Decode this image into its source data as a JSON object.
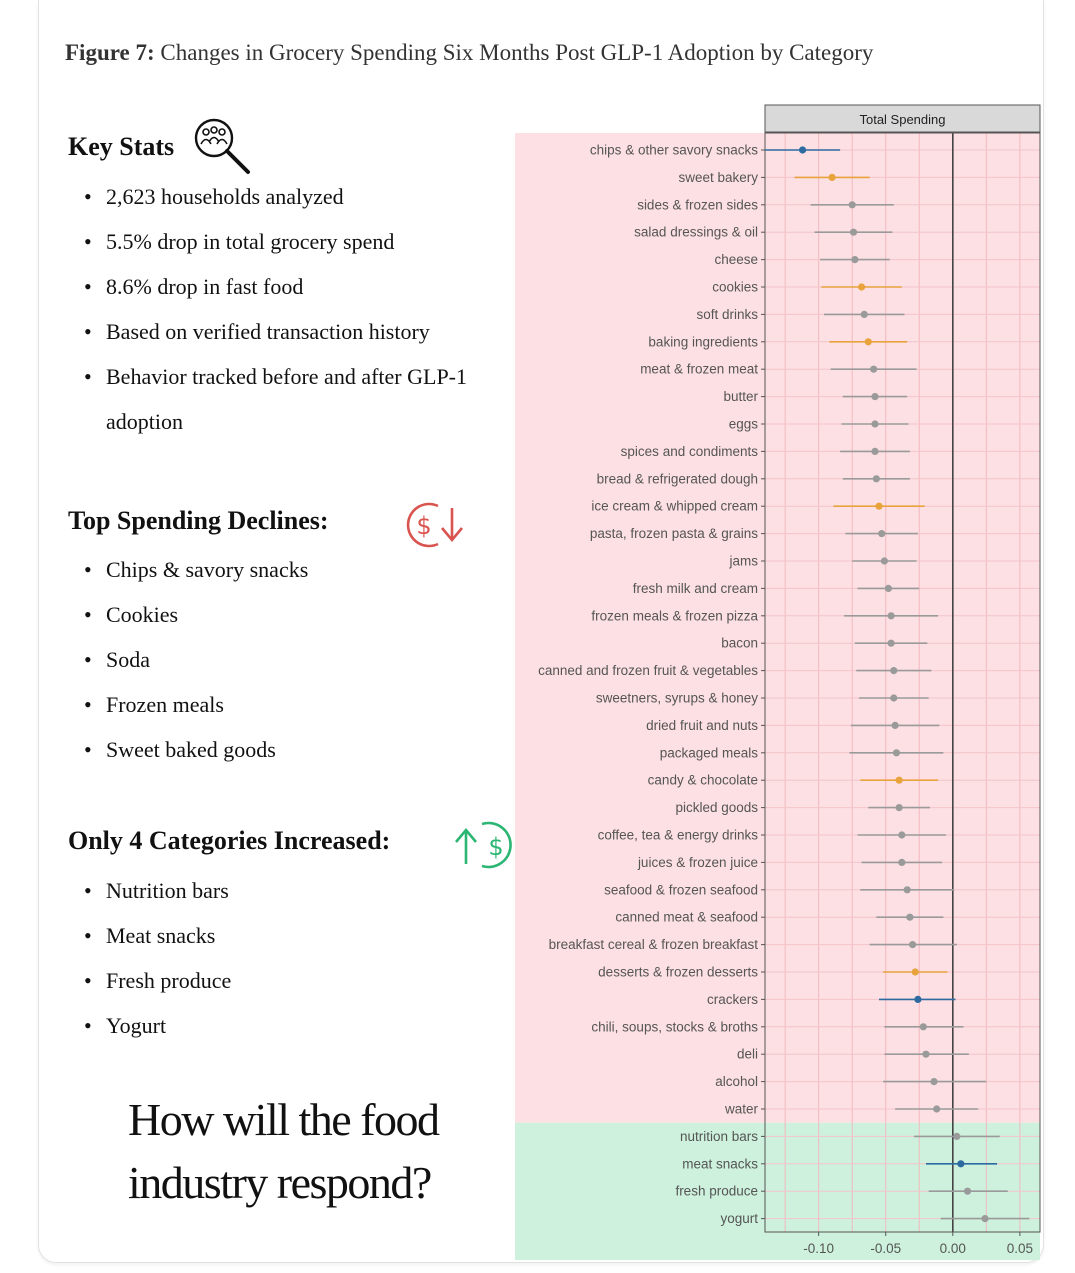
{
  "figure": {
    "label": "Figure 7:",
    "title": "Changes in Grocery Spending Six Months Post GLP-1 Adoption by Category"
  },
  "key_stats": {
    "heading": "Key Stats",
    "icon": "search-people-icon",
    "items": [
      "2,623 households analyzed",
      "5.5% drop in total grocery spend",
      "8.6% drop in fast food",
      "Based on verified transaction history",
      "Behavior tracked before and after GLP-1 adoption"
    ]
  },
  "declines": {
    "heading": "Top Spending Declines:",
    "icon": "dollar-down-icon",
    "items": [
      "Chips & savory snacks",
      "Cookies",
      "Soda",
      "Frozen meals",
      "Sweet baked goods"
    ]
  },
  "increases": {
    "heading": "Only 4 Categories Increased:",
    "icon": "dollar-up-icon",
    "items": [
      "Nutrition bars",
      "Meat snacks",
      "Fresh produce",
      "Yogurt"
    ]
  },
  "question": "How will the food industry respond?",
  "colors": {
    "decline_bg": "#fde0e3",
    "increase_bg": "#cdf1dc",
    "gray": "#9a9a9a",
    "orange": "#e8a33d",
    "blue": "#2d6aa0",
    "red_icon": "#d9534f",
    "green_icon": "#2bb673"
  },
  "chart_data": {
    "type": "scatter",
    "panel_title": "Total Spending",
    "xlim": [
      -0.14,
      0.065
    ],
    "xticks": [
      -0.1,
      -0.05,
      0.0,
      0.05
    ],
    "xtick_labels": [
      "-0.10",
      "-0.05",
      "0.00",
      "0.05"
    ],
    "zero_line": 0,
    "grid": true,
    "points": [
      {
        "category": "chips & other savory snacks",
        "estimate": -0.112,
        "ci": [
          -0.14,
          -0.084
        ],
        "color": "blue",
        "group": "decline"
      },
      {
        "category": "sweet bakery",
        "estimate": -0.09,
        "ci": [
          -0.118,
          -0.062
        ],
        "color": "orange",
        "group": "decline"
      },
      {
        "category": "sides & frozen sides",
        "estimate": -0.075,
        "ci": [
          -0.106,
          -0.044
        ],
        "color": "gray",
        "group": "decline"
      },
      {
        "category": "salad dressings & oil",
        "estimate": -0.074,
        "ci": [
          -0.103,
          -0.045
        ],
        "color": "gray",
        "group": "decline"
      },
      {
        "category": "cheese",
        "estimate": -0.073,
        "ci": [
          -0.099,
          -0.047
        ],
        "color": "gray",
        "group": "decline"
      },
      {
        "category": "cookies",
        "estimate": -0.068,
        "ci": [
          -0.098,
          -0.038
        ],
        "color": "orange",
        "group": "decline"
      },
      {
        "category": "soft drinks",
        "estimate": -0.066,
        "ci": [
          -0.096,
          -0.036
        ],
        "color": "gray",
        "group": "decline"
      },
      {
        "category": "baking ingredients",
        "estimate": -0.063,
        "ci": [
          -0.092,
          -0.034
        ],
        "color": "orange",
        "group": "decline"
      },
      {
        "category": "meat & frozen meat",
        "estimate": -0.059,
        "ci": [
          -0.091,
          -0.027
        ],
        "color": "gray",
        "group": "decline"
      },
      {
        "category": "butter",
        "estimate": -0.058,
        "ci": [
          -0.082,
          -0.034
        ],
        "color": "gray",
        "group": "decline"
      },
      {
        "category": "eggs",
        "estimate": -0.058,
        "ci": [
          -0.083,
          -0.033
        ],
        "color": "gray",
        "group": "decline"
      },
      {
        "category": "spices and condiments",
        "estimate": -0.058,
        "ci": [
          -0.084,
          -0.032
        ],
        "color": "gray",
        "group": "decline"
      },
      {
        "category": "bread & refrigerated dough",
        "estimate": -0.057,
        "ci": [
          -0.082,
          -0.032
        ],
        "color": "gray",
        "group": "decline"
      },
      {
        "category": "ice cream & whipped cream",
        "estimate": -0.055,
        "ci": [
          -0.089,
          -0.021
        ],
        "color": "orange",
        "group": "decline"
      },
      {
        "category": "pasta, frozen pasta & grains",
        "estimate": -0.053,
        "ci": [
          -0.08,
          -0.026
        ],
        "color": "gray",
        "group": "decline"
      },
      {
        "category": "jams",
        "estimate": -0.051,
        "ci": [
          -0.075,
          -0.027
        ],
        "color": "gray",
        "group": "decline"
      },
      {
        "category": "fresh milk and cream",
        "estimate": -0.048,
        "ci": [
          -0.071,
          -0.025
        ],
        "color": "gray",
        "group": "decline"
      },
      {
        "category": "frozen meals & frozen pizza",
        "estimate": -0.046,
        "ci": [
          -0.081,
          -0.011
        ],
        "color": "gray",
        "group": "decline"
      },
      {
        "category": "bacon",
        "estimate": -0.046,
        "ci": [
          -0.073,
          -0.019
        ],
        "color": "gray",
        "group": "decline"
      },
      {
        "category": "canned and frozen fruit & vegetables",
        "estimate": -0.044,
        "ci": [
          -0.072,
          -0.016
        ],
        "color": "gray",
        "group": "decline"
      },
      {
        "category": "sweetners, syrups & honey",
        "estimate": -0.044,
        "ci": [
          -0.07,
          -0.018
        ],
        "color": "gray",
        "group": "decline"
      },
      {
        "category": "dried fruit and nuts",
        "estimate": -0.043,
        "ci": [
          -0.076,
          -0.01
        ],
        "color": "gray",
        "group": "decline"
      },
      {
        "category": "packaged meals",
        "estimate": -0.042,
        "ci": [
          -0.077,
          -0.007
        ],
        "color": "gray",
        "group": "decline"
      },
      {
        "category": "candy & chocolate",
        "estimate": -0.04,
        "ci": [
          -0.069,
          -0.011
        ],
        "color": "orange",
        "group": "decline"
      },
      {
        "category": "pickled goods",
        "estimate": -0.04,
        "ci": [
          -0.063,
          -0.017
        ],
        "color": "gray",
        "group": "decline"
      },
      {
        "category": "coffee, tea & energy drinks",
        "estimate": -0.038,
        "ci": [
          -0.071,
          -0.005
        ],
        "color": "gray",
        "group": "decline"
      },
      {
        "category": "juices & frozen juice",
        "estimate": -0.038,
        "ci": [
          -0.068,
          -0.008
        ],
        "color": "gray",
        "group": "decline"
      },
      {
        "category": "seafood & frozen seafood",
        "estimate": -0.034,
        "ci": [
          -0.069,
          0.001
        ],
        "color": "gray",
        "group": "decline"
      },
      {
        "category": "canned meat & seafood",
        "estimate": -0.032,
        "ci": [
          -0.057,
          -0.007
        ],
        "color": "gray",
        "group": "decline"
      },
      {
        "category": "breakfast cereal & frozen breakfast",
        "estimate": -0.03,
        "ci": [
          -0.062,
          0.003
        ],
        "color": "gray",
        "group": "decline"
      },
      {
        "category": "desserts & frozen desserts",
        "estimate": -0.028,
        "ci": [
          -0.052,
          -0.004
        ],
        "color": "orange",
        "group": "decline"
      },
      {
        "category": "crackers",
        "estimate": -0.026,
        "ci": [
          -0.055,
          0.002
        ],
        "color": "blue",
        "group": "decline"
      },
      {
        "category": "chili, soups, stocks & broths",
        "estimate": -0.022,
        "ci": [
          -0.051,
          0.008
        ],
        "color": "gray",
        "group": "decline"
      },
      {
        "category": "deli",
        "estimate": -0.02,
        "ci": [
          -0.051,
          0.012
        ],
        "color": "gray",
        "group": "decline"
      },
      {
        "category": "alcohol",
        "estimate": -0.014,
        "ci": [
          -0.052,
          0.025
        ],
        "color": "gray",
        "group": "decline"
      },
      {
        "category": "water",
        "estimate": -0.012,
        "ci": [
          -0.043,
          0.019
        ],
        "color": "gray",
        "group": "decline"
      },
      {
        "category": "nutrition bars",
        "estimate": 0.003,
        "ci": [
          -0.029,
          0.035
        ],
        "color": "gray",
        "group": "increase"
      },
      {
        "category": "meat snacks",
        "estimate": 0.006,
        "ci": [
          -0.02,
          0.033
        ],
        "color": "blue",
        "group": "increase"
      },
      {
        "category": "fresh produce",
        "estimate": 0.011,
        "ci": [
          -0.018,
          0.041
        ],
        "color": "gray",
        "group": "increase"
      },
      {
        "category": "yogurt",
        "estimate": 0.024,
        "ci": [
          -0.009,
          0.057
        ],
        "color": "gray",
        "group": "increase"
      }
    ]
  }
}
